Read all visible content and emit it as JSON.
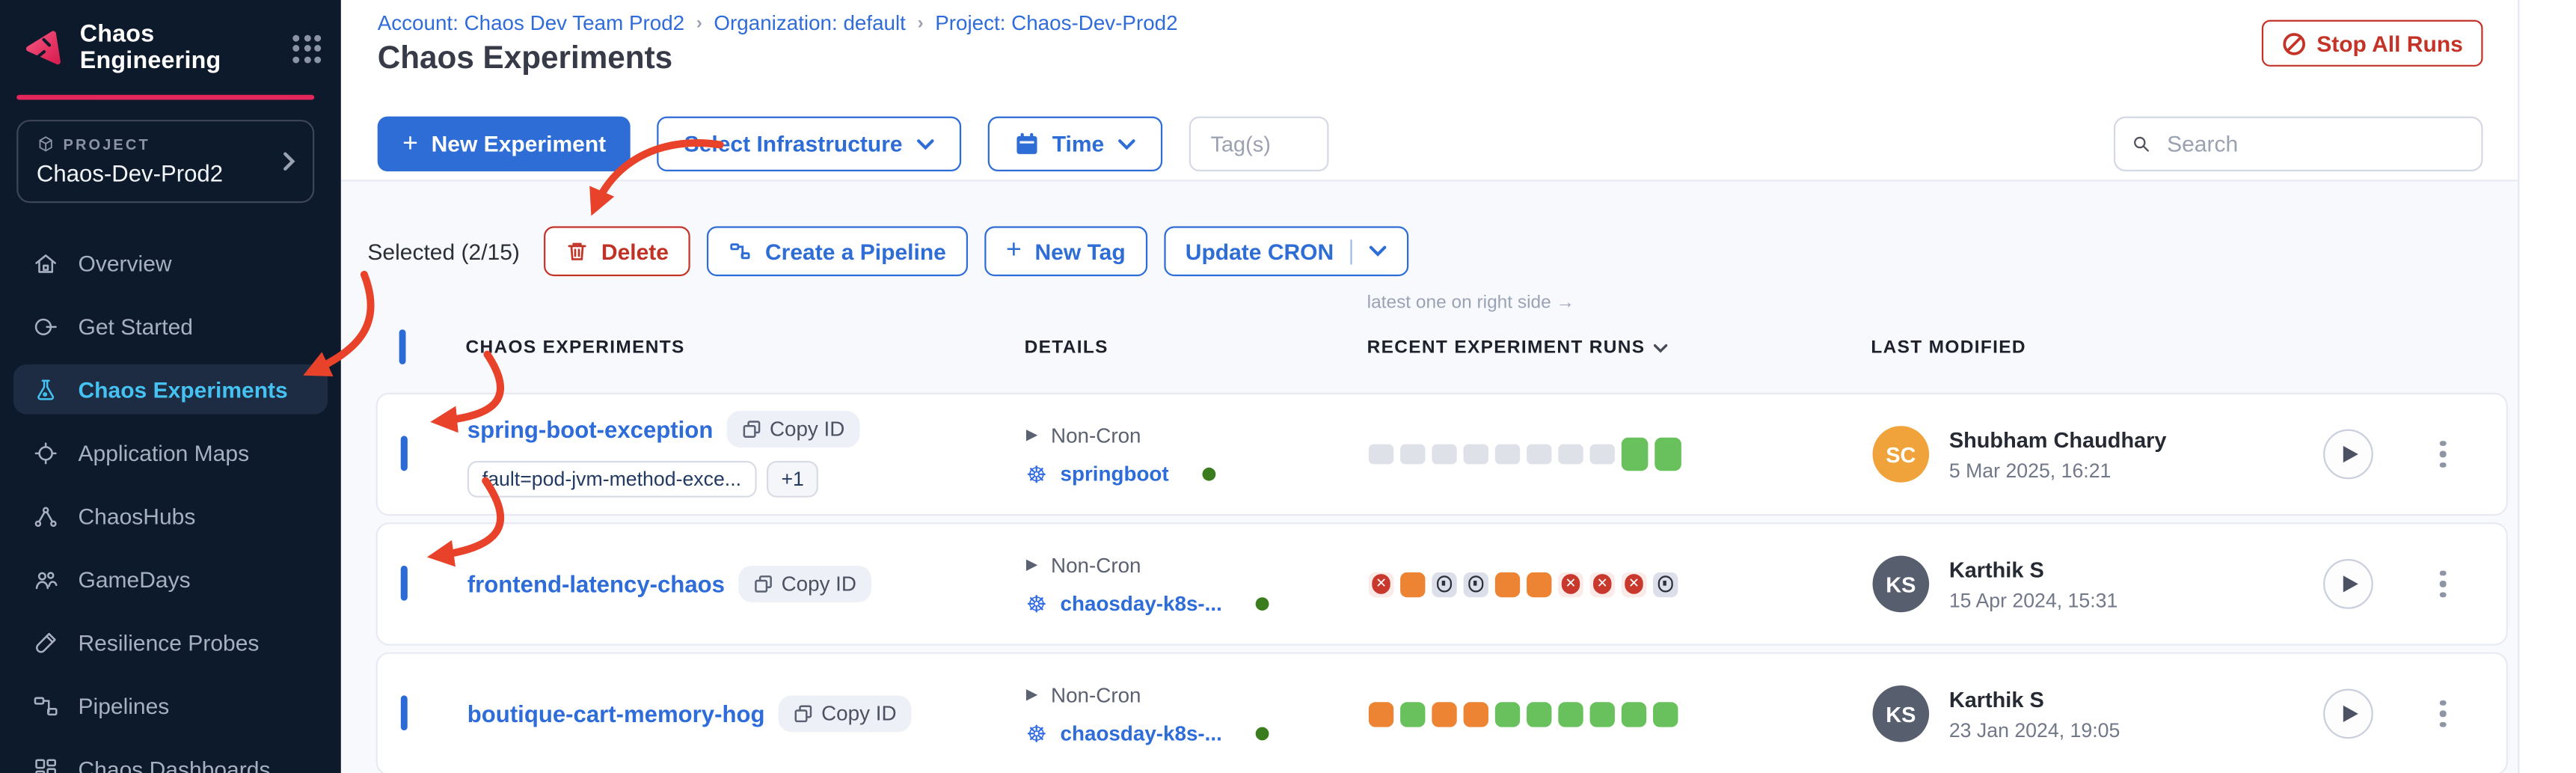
{
  "app": {
    "name": "Chaos Engineering",
    "project_label": "PROJECT",
    "project_name": "Chaos-Dev-Prod2"
  },
  "sidebar": {
    "items": [
      {
        "label": "Overview",
        "icon": "home-icon",
        "active": false
      },
      {
        "label": "Get Started",
        "icon": "get-started-icon",
        "active": false
      },
      {
        "label": "Chaos Experiments",
        "icon": "flask-icon",
        "active": true
      },
      {
        "label": "Application Maps",
        "icon": "crosshair-icon",
        "active": false
      },
      {
        "label": "ChaosHubs",
        "icon": "network-icon",
        "active": false
      },
      {
        "label": "GameDays",
        "icon": "people-icon",
        "active": false
      },
      {
        "label": "Resilience Probes",
        "icon": "test-tube-icon",
        "active": false
      },
      {
        "label": "Pipelines",
        "icon": "pipeline-icon",
        "active": false
      },
      {
        "label": "Chaos Dashboards",
        "icon": "dashboard-icon",
        "active": false
      }
    ]
  },
  "breadcrumb": {
    "account": "Account: Chaos Dev Team Prod2",
    "separator": "›",
    "org": "Organization: default",
    "project": "Project: Chaos-Dev-Prod2"
  },
  "header": {
    "title": "Chaos Experiments",
    "stop_all_runs": "Stop All Runs"
  },
  "toolbar": {
    "new_experiment": "New Experiment",
    "select_infrastructure": "Select Infrastructure",
    "time": "Time",
    "tags_placeholder": "Tag(s)",
    "search_placeholder": "Search"
  },
  "selection": {
    "label": "Selected (2/15)",
    "delete": "Delete",
    "create_pipeline": "Create a Pipeline",
    "new_tag": "New Tag",
    "update_cron": "Update CRON"
  },
  "table": {
    "runs_note": "latest one on right side →",
    "col_experiments": "CHAOS EXPERIMENTS",
    "col_details": "DETAILS",
    "col_runs": "RECENT EXPERIMENT RUNS",
    "col_modified": "LAST MODIFIED"
  },
  "rows": [
    {
      "name": "spring-boot-exception",
      "copy_id": "Copy ID",
      "checked": true,
      "tags": [
        "fault=pod-jvm-method-exce..."
      ],
      "extra_tag": "+1",
      "schedule": "Non-Cron",
      "infra": "springboot",
      "runs": [
        "gray",
        "gray",
        "gray",
        "gray",
        "gray",
        "gray",
        "gray",
        "gray",
        "green-tall",
        "green-tall"
      ],
      "modifier": {
        "initials": "SC",
        "color": "#f0a33b",
        "name": "Shubham Chaudhary",
        "date": "5 Mar 2025, 16:21"
      }
    },
    {
      "name": "frontend-latency-chaos",
      "copy_id": "Copy ID",
      "checked": true,
      "tags": [],
      "extra_tag": "",
      "schedule": "Non-Cron",
      "infra": "chaosday-k8s-...",
      "runs": [
        "failed",
        "orange",
        "stopped",
        "stopped",
        "orange",
        "orange",
        "failed",
        "failed",
        "failed",
        "stopped"
      ],
      "modifier": {
        "initials": "KS",
        "color": "#575e6e",
        "name": "Karthik S",
        "date": "15 Apr 2024, 15:31"
      }
    },
    {
      "name": "boutique-cart-memory-hog",
      "copy_id": "Copy ID",
      "checked": false,
      "tags": [],
      "extra_tag": "",
      "schedule": "Non-Cron",
      "infra": "chaosday-k8s-...",
      "runs": [
        "orange",
        "green",
        "orange",
        "orange",
        "green",
        "green",
        "green",
        "green",
        "green",
        "green"
      ],
      "modifier": {
        "initials": "KS",
        "color": "#575e6e",
        "name": "Karthik S",
        "date": "23 Jan 2024, 19:05"
      }
    }
  ],
  "colors": {
    "accent_pink": "#e3265b",
    "primary_blue": "#2e6cd6",
    "danger_red": "#c43327",
    "annotation_red": "#e8432a",
    "run_green": "#68c15c",
    "run_orange": "#ec8434",
    "run_gray": "#dfe1e9",
    "run_failed_bg": "#faeae8",
    "run_failed_icon": "#c8382c",
    "run_stopped_bg": "#dcdfe9",
    "active_item_blue": "#45c2f1",
    "sidebar_bg": "#0d1a2b",
    "online_green": "#3b7d1e"
  }
}
